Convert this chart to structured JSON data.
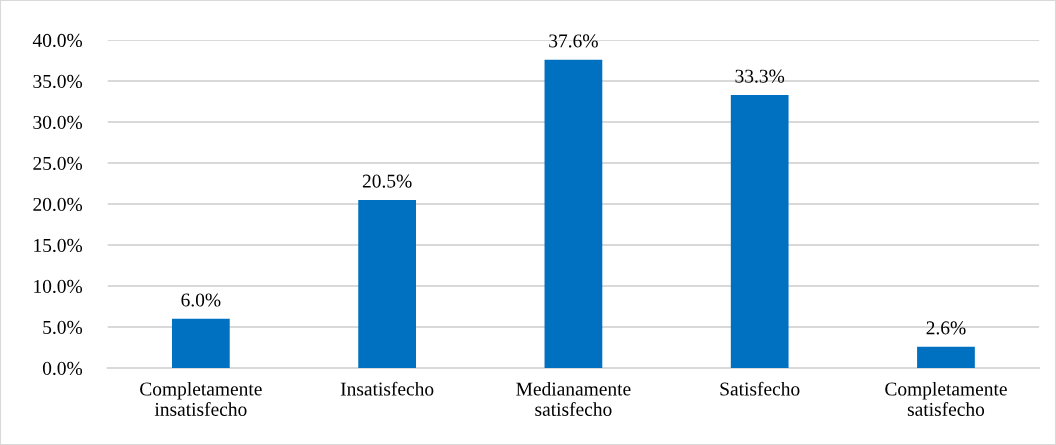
{
  "chart_data": {
    "type": "bar",
    "categories": [
      "Completamente\ninsatisfecho",
      "Insatisfecho",
      "Medianamente\nsatisfecho",
      "Satisfecho",
      "Completamente\nsatisfecho"
    ],
    "values": [
      6.0,
      20.5,
      37.6,
      33.3,
      2.6
    ],
    "value_labels": [
      "6.0%",
      "20.5%",
      "37.6%",
      "33.3%",
      "2.6%"
    ],
    "color": "#0070c0",
    "ylim": [
      0,
      40
    ],
    "yticks": [
      {
        "value": 0,
        "label": "0.0%"
      },
      {
        "value": 5,
        "label": "5.0%"
      },
      {
        "value": 10,
        "label": "10.0%"
      },
      {
        "value": 15,
        "label": "15.0%"
      },
      {
        "value": 20,
        "label": "20.0%"
      },
      {
        "value": 25,
        "label": "25.0%"
      },
      {
        "value": 30,
        "label": "30.0%"
      },
      {
        "value": 35,
        "label": "35.0%"
      },
      {
        "value": 40,
        "label": "40.0%"
      }
    ],
    "grid": "y",
    "legend": false
  }
}
